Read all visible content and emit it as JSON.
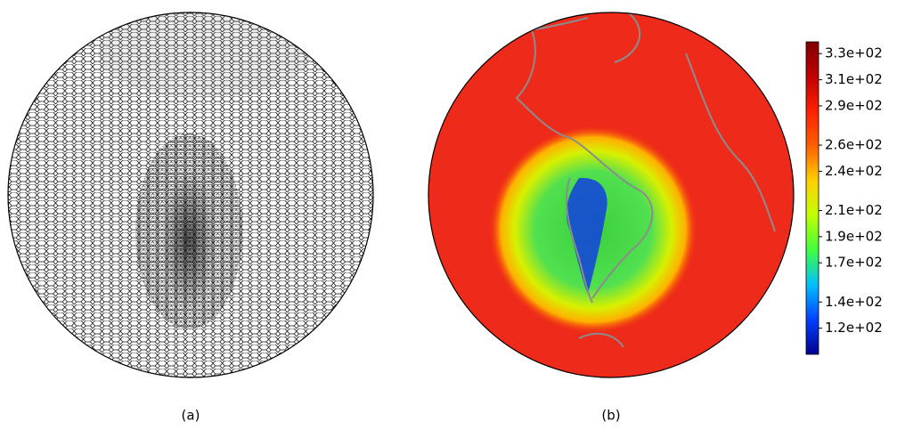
{
  "panels": [
    {
      "caption": "(a)"
    },
    {
      "caption": "(b)"
    }
  ],
  "colorbar": {
    "lim": [
      100,
      339
    ],
    "colors": [
      "#00008f",
      "#0040ff",
      "#00c0ff",
      "#40ff40",
      "#c0ff00",
      "#ffd000",
      "#ff6000",
      "#ff2000",
      "#c00000",
      "#800000"
    ],
    "ticks": [
      {
        "value": 120,
        "label": "1.2e+02"
      },
      {
        "value": 140,
        "label": "1.4e+02"
      },
      {
        "value": 170,
        "label": "1.7e+02"
      },
      {
        "value": 190,
        "label": "1.9e+02"
      },
      {
        "value": 210,
        "label": "2.1e+02"
      },
      {
        "value": 240,
        "label": "2.4e+02"
      },
      {
        "value": 260,
        "label": "2.6e+02"
      },
      {
        "value": 290,
        "label": "2.9e+02"
      },
      {
        "value": 310,
        "label": "3.1e+02"
      },
      {
        "value": 330,
        "label": "3.3e+02"
      }
    ]
  }
}
